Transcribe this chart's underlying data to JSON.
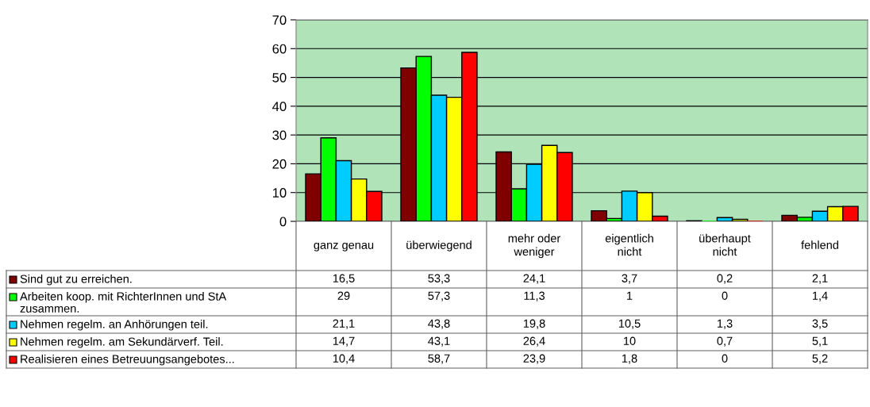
{
  "chart_data": {
    "type": "bar",
    "categories": [
      "ganz genau",
      "überwiegend",
      "mehr oder weniger",
      "eigentlich nicht",
      "überhaupt nicht",
      "fehlend"
    ],
    "series": [
      {
        "name": "Sind gut zu erreichen.",
        "color": "#800000",
        "values": [
          16.5,
          53.3,
          24.1,
          3.7,
          0.2,
          2.1
        ],
        "value_labels": [
          "16,5",
          "53,3",
          "24,1",
          "3,7",
          "0,2",
          "2,1"
        ]
      },
      {
        "name": "Arbeiten koop. mit RichterInnen und StA zusammen.",
        "color": "#00ff00",
        "values": [
          29,
          57.3,
          11.3,
          1,
          0,
          1.4
        ],
        "value_labels": [
          "29",
          "57,3",
          "11,3",
          "1",
          "0",
          "1,4"
        ]
      },
      {
        "name": "Nehmen regelm. an Anhörungen teil.",
        "color": "#00ccff",
        "values": [
          21.1,
          43.8,
          19.8,
          10.5,
          1.3,
          3.5
        ],
        "value_labels": [
          "21,1",
          "43,8",
          "19,8",
          "10,5",
          "1,3",
          "3,5"
        ]
      },
      {
        "name": "Nehmen regelm. am Sekundärverf. Teil.",
        "color": "#ffff00",
        "values": [
          14.7,
          43.1,
          26.4,
          10,
          0.7,
          5.1
        ],
        "value_labels": [
          "14,7",
          "43,1",
          "26,4",
          "10",
          "0,7",
          "5,1"
        ]
      },
      {
        "name": "Realisieren eines Betreuungsangebotes...",
        "color": "#ff0000",
        "values": [
          10.4,
          58.7,
          23.9,
          1.8,
          0,
          5.2
        ],
        "value_labels": [
          "10,4",
          "58,7",
          "23,9",
          "1,8",
          "0",
          "5,2"
        ]
      }
    ],
    "ylim": [
      0,
      70
    ],
    "yticks": [
      0,
      10,
      20,
      30,
      40,
      50,
      60,
      70
    ],
    "grid": "y",
    "legend": "bottom left"
  }
}
